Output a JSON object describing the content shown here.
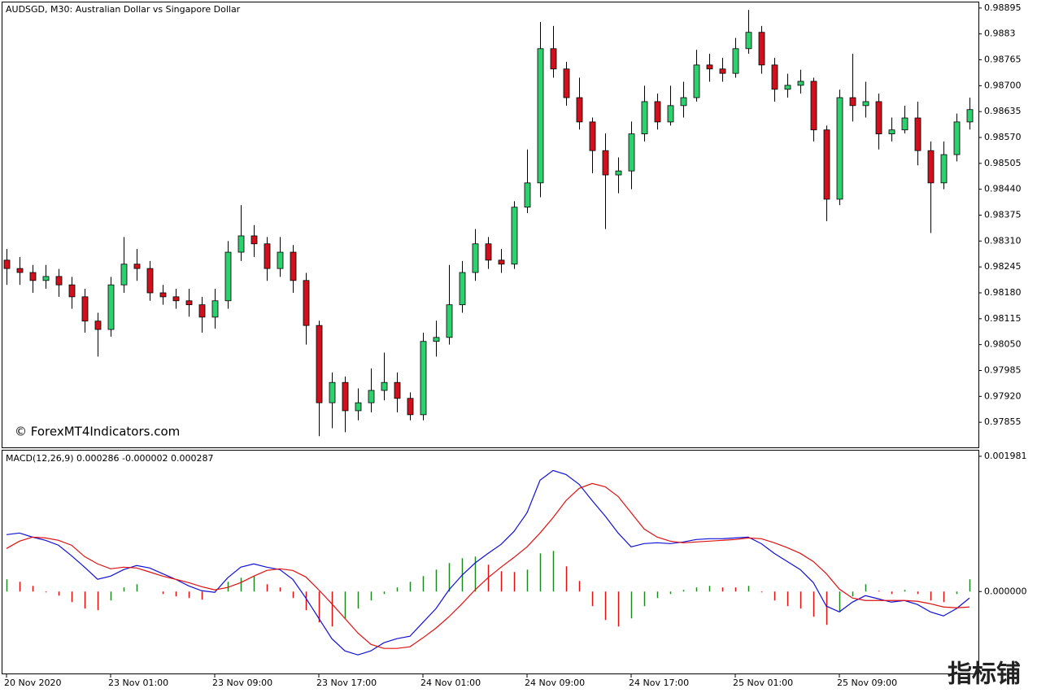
{
  "chart_data": [
    {
      "type": "candlestick",
      "title": "AUDSGD, M30:  Australian Dollar vs Singapore Dollar",
      "watermark": "© ForexMT4Indicators.com",
      "corner_mark": "指标铺",
      "up_color": "#2fcf6f",
      "down_color": "#d0101c",
      "ylim": [
        0.97792,
        0.98909
      ],
      "yticks": [
        0.98895,
        0.9883,
        0.98765,
        {
          "value": 0.987,
          "label": "0.98700"
        },
        0.98635,
        {
          "value": 0.9857,
          "label": "0.98570"
        },
        0.98505,
        {
          "value": 0.9844,
          "label": "0.98440"
        },
        0.98375,
        {
          "value": 0.9831,
          "label": "0.98310"
        },
        0.98245,
        {
          "value": 0.9818,
          "label": "0.98180"
        },
        0.98115,
        {
          "value": 0.9805,
          "label": "0.98050"
        },
        0.97985,
        {
          "value": 0.9792,
          "label": "0.97920"
        },
        0.97855
      ],
      "categories": [
        "20 Nov 2020",
        null,
        null,
        null,
        null,
        null,
        null,
        null,
        "23 Nov 01:00",
        null,
        null,
        null,
        null,
        null,
        null,
        null,
        "23 Nov 09:00",
        null,
        null,
        null,
        null,
        null,
        null,
        null,
        "23 Nov 17:00",
        null,
        null,
        null,
        null,
        null,
        null,
        null,
        "24 Nov 01:00",
        null,
        null,
        null,
        null,
        null,
        null,
        null,
        "24 Nov 09:00",
        null,
        null,
        null,
        null,
        null,
        null,
        null,
        "24 Nov 17:00",
        null,
        null,
        null,
        null,
        null,
        null,
        null,
        "25 Nov 01:00",
        null,
        null,
        null,
        null,
        null,
        null,
        null,
        "25 Nov 09:00",
        null,
        null,
        null,
        null,
        null,
        null,
        null,
        null,
        null,
        null
      ],
      "open": [
        0.98262,
        0.98241,
        0.98231,
        0.98211,
        0.98221,
        0.982,
        0.9817,
        0.98109,
        0.98088,
        0.982,
        0.98252,
        0.98241,
        0.9818,
        0.9817,
        0.9816,
        0.9815,
        0.98119,
        0.9816,
        0.98282,
        0.98323,
        0.98303,
        0.98241,
        0.98282,
        0.98211,
        0.98098,
        0.97904,
        0.97955,
        0.97884,
        0.97904,
        0.97935,
        0.97955,
        0.97915,
        0.97874,
        0.98058,
        0.98068,
        0.9815,
        0.98231,
        0.98303,
        0.98262,
        0.98252,
        0.98395,
        0.98456,
        0.98793,
        0.98742,
        0.9867,
        0.98609,
        0.98537,
        0.98476,
        0.98486,
        0.98579,
        0.9866,
        0.98609,
        0.9865,
        0.9867,
        0.98752,
        0.98742,
        0.98731,
        0.98793,
        0.98834,
        0.98752,
        0.98691,
        0.98701,
        0.98711,
        0.98589,
        0.98415,
        0.9867,
        0.9865,
        0.9866,
        0.98579,
        0.98589,
        0.98619,
        0.98537,
        0.98456,
        0.98527,
        0.98609
      ],
      "high": [
        0.9829,
        0.9827,
        0.9825,
        0.9825,
        0.9824,
        0.9822,
        0.9819,
        0.9813,
        0.9822,
        0.9832,
        0.9829,
        0.9826,
        0.982,
        0.9819,
        0.9819,
        0.9817,
        0.9819,
        0.9831,
        0.984,
        0.9835,
        0.9832,
        0.9832,
        0.983,
        0.9823,
        0.9811,
        0.9798,
        0.9797,
        0.9794,
        0.9799,
        0.9803,
        0.9798,
        0.9793,
        0.9808,
        0.9811,
        0.9825,
        0.9826,
        0.9834,
        0.9832,
        0.9829,
        0.9841,
        0.9854,
        0.9886,
        0.9885,
        0.9876,
        0.9872,
        0.9862,
        0.9858,
        0.9852,
        0.9861,
        0.987,
        0.9868,
        0.987,
        0.9871,
        0.9879,
        0.9878,
        0.9877,
        0.9882,
        0.9889,
        0.9885,
        0.9877,
        0.9873,
        0.9874,
        0.9872,
        0.986,
        0.9869,
        0.9878,
        0.9871,
        0.9868,
        0.9862,
        0.9865,
        0.9866,
        0.9856,
        0.9856,
        0.9863,
        0.9867
      ],
      "low": [
        0.982,
        0.982,
        0.9818,
        0.9819,
        0.9817,
        0.9814,
        0.9808,
        0.9802,
        0.9807,
        0.9818,
        0.9821,
        0.9816,
        0.9815,
        0.9814,
        0.9812,
        0.9808,
        0.9809,
        0.9814,
        0.9826,
        0.9827,
        0.9821,
        0.9822,
        0.9818,
        0.9805,
        0.9782,
        0.9784,
        0.9783,
        0.9786,
        0.9788,
        0.9791,
        0.9788,
        0.9786,
        0.9786,
        0.9802,
        0.9805,
        0.9813,
        0.9821,
        0.9824,
        0.9823,
        0.9824,
        0.9838,
        0.9842,
        0.9872,
        0.9865,
        0.9859,
        0.9848,
        0.9834,
        0.9843,
        0.9844,
        0.9856,
        0.9859,
        0.986,
        0.9862,
        0.9866,
        0.9871,
        0.9871,
        0.9872,
        0.9878,
        0.9873,
        0.9866,
        0.9867,
        0.9868,
        0.9856,
        0.9836,
        0.984,
        0.9861,
        0.9862,
        0.9854,
        0.9856,
        0.9858,
        0.985,
        0.9833,
        0.9844,
        0.9851,
        0.9859
      ],
      "close": [
        0.98241,
        0.98231,
        0.98211,
        0.98221,
        0.982,
        0.9817,
        0.98109,
        0.98088,
        0.982,
        0.98252,
        0.98241,
        0.9818,
        0.9817,
        0.9816,
        0.9815,
        0.98119,
        0.9816,
        0.98282,
        0.98323,
        0.98303,
        0.98241,
        0.98282,
        0.98211,
        0.98098,
        0.97904,
        0.97955,
        0.97884,
        0.97904,
        0.97935,
        0.97955,
        0.97915,
        0.97874,
        0.98058,
        0.98068,
        0.9815,
        0.98231,
        0.98303,
        0.98262,
        0.98252,
        0.98395,
        0.98456,
        0.98793,
        0.98742,
        0.9867,
        0.98609,
        0.98537,
        0.98476,
        0.98486,
        0.98579,
        0.9866,
        0.98609,
        0.9865,
        0.9867,
        0.98752,
        0.98742,
        0.98731,
        0.98793,
        0.98834,
        0.98752,
        0.98691,
        0.98701,
        0.98711,
        0.98589,
        0.98415,
        0.9867,
        0.9865,
        0.9866,
        0.98579,
        0.98589,
        0.98619,
        0.98537,
        0.98456,
        0.98527,
        0.98609,
        0.9864
      ]
    },
    {
      "type": "macd",
      "title": "MACD(12,26,9) 0.000286 -0.000002 0.000287",
      "ylim": [
        -0.0012,
        0.002064
      ],
      "yticks": [
        0.001981,
        {
          "value": 0,
          "label": "0.000000"
        }
      ],
      "histogram": {
        "up_color": "#1a8a1a",
        "down_color": "#e01010",
        "values": [
          0.000179,
          0.000143,
          8.3e-05,
          -1.2e-05,
          -6e-05,
          -0.000155,
          -0.00025,
          -0.000274,
          -0.000131,
          6e-05,
          0.000107,
          0,
          -3.6e-05,
          -7.1e-05,
          -9.5e-05,
          -0.000119,
          -1.2e-05,
          0.000143,
          0.000202,
          0.000226,
          0.000107,
          6e-05,
          -9.5e-05,
          -0.000274,
          -0.000452,
          -0.000512,
          -0.000393,
          -0.00025,
          -0.000131,
          -3.6e-05,
          6e-05,
          0.000143,
          0.000226,
          0.000321,
          0.000417,
          0.000488,
          0.000512,
          0.000393,
          0.000298,
          0.000286,
          0.000321,
          0.000559,
          0.000595,
          0.000369,
          0.000155,
          -0.000214,
          -0.000417,
          -0.000512,
          -0.000393,
          -0.000214,
          -9.5e-05,
          -3.6e-05,
          2.4e-05,
          6e-05,
          8.3e-05,
          6e-05,
          6e-05,
          8.3e-05,
          -1.2e-05,
          -0.000131,
          -0.000214,
          -0.00025,
          -0.000369,
          -0.000488,
          -0.000298,
          -7.1e-05,
          0.000107,
          1.2e-05,
          -3.6e-05,
          2.4e-05,
          -3.6e-05,
          -0.000131,
          -0.000155,
          -3.6e-05,
          0.000179
        ]
      },
      "series": [
        {
          "color": "#1010d8",
          "values": [
            0.000833,
            0.000857,
            0.000797,
            0.00075,
            0.000678,
            0.000524,
            0.000357,
            0.000179,
            0.000226,
            0.000321,
            0.000381,
            0.000345,
            0.000262,
            0.000179,
            8.3e-05,
            1.2e-05,
            -1.2e-05,
            0.000202,
            0.000357,
            0.000405,
            0.000357,
            0.000321,
            0.000179,
            -9.5e-05,
            -0.000393,
            -0.00069,
            -0.000869,
            -0.000928,
            -0.000869,
            -0.00075,
            -0.00069,
            -0.000655,
            -0.000452,
            -0.00025,
            2.4e-05,
            0.000238,
            0.000417,
            0.000559,
            0.00069,
            0.000881,
            0.001154,
            0.00163,
            0.001773,
            0.001714,
            0.001571,
            0.001333,
            0.001107,
            0.000857,
            0.000655,
            0.000702,
            0.000714,
            0.000702,
            0.000726,
            0.000762,
            0.000774,
            0.000774,
            0.000785,
            0.000797,
            0.000702,
            0.000559,
            0.00044,
            0.000321,
            0.000131,
            -0.000214,
            -0.000298,
            -0.000155,
            -6e-05,
            -0.000107,
            -0.000155,
            -0.000131,
            -0.00019,
            -0.000298,
            -0.000357,
            -0.00025,
            -9.5e-05
          ]
        },
        {
          "color": "#e01010",
          "values": [
            0.000631,
            0.000738,
            0.000797,
            0.000785,
            0.00075,
            0.000678,
            0.000512,
            0.000405,
            0.000333,
            0.000357,
            0.000345,
            0.000286,
            0.000226,
            0.000179,
            0.000131,
            7.1e-05,
            2.4e-05,
            6e-05,
            0.000131,
            0.000226,
            0.000309,
            0.000333,
            0.000309,
            0.000214,
            2.4e-05,
            -0.000179,
            -0.000393,
            -0.000607,
            -0.000774,
            -0.000833,
            -0.000833,
            -0.000809,
            -0.000678,
            -0.000536,
            -0.000369,
            -0.000179,
            2.4e-05,
            0.000202,
            0.000357,
            0.0005,
            0.000655,
            0.000857,
            0.001083,
            0.001333,
            0.001511,
            0.001583,
            0.001535,
            0.001392,
            0.001154,
            0.000916,
            0.000797,
            0.000738,
            0.000714,
            0.000726,
            0.000738,
            0.00075,
            0.000762,
            0.000785,
            0.000774,
            0.000714,
            0.000643,
            0.000559,
            0.00044,
            0.000262,
            3.6e-05,
            -9.5e-05,
            -0.000131,
            -0.000131,
            -0.000131,
            -0.000131,
            -0.000143,
            -0.000179,
            -0.000226,
            -0.000238,
            -0.000226
          ]
        }
      ]
    }
  ]
}
